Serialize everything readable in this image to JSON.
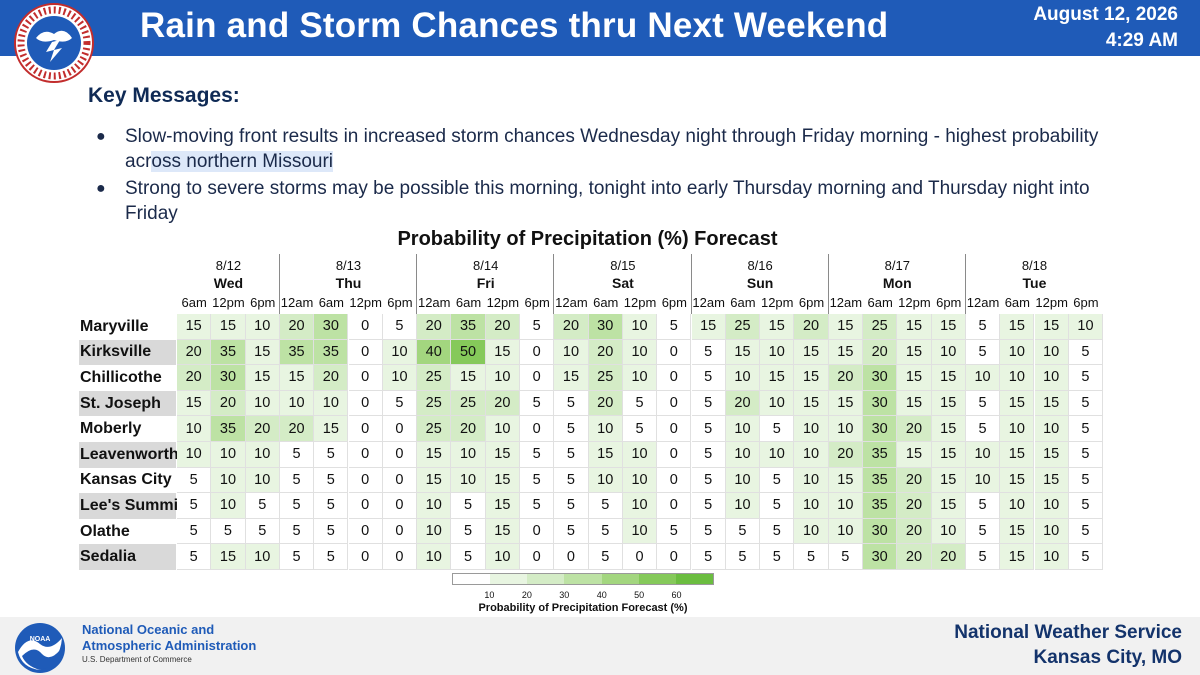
{
  "header": {
    "title": "Rain and Storm Chances thru Next Weekend",
    "date": "August 12, 2026",
    "time": "4:29 AM"
  },
  "key_messages": {
    "heading": "Key Messages:",
    "items": [
      {
        "before": "Slow-moving front results in increased storm chances Wednesday night through Friday morning - highest probability acr",
        "highlight": "oss northern Missouri"
      },
      {
        "before": "Strong to severe storms may be possible this morning, tonight into early Thursday morning and Thursday night into Friday",
        "highlight": ""
      }
    ]
  },
  "table": {
    "title": "Probability of Precipitation (%) Forecast",
    "days": [
      {
        "date": "8/12",
        "day": "Wed",
        "times": [
          "6am",
          "12pm",
          "6pm"
        ]
      },
      {
        "date": "8/13",
        "day": "Thu",
        "times": [
          "12am",
          "6am",
          "12pm",
          "6pm"
        ]
      },
      {
        "date": "8/14",
        "day": "Fri",
        "times": [
          "12am",
          "6am",
          "12pm",
          "6pm"
        ]
      },
      {
        "date": "8/15",
        "day": "Sat",
        "times": [
          "12am",
          "6am",
          "12pm",
          "6pm"
        ]
      },
      {
        "date": "8/16",
        "day": "Sun",
        "times": [
          "12am",
          "6am",
          "12pm",
          "6pm"
        ]
      },
      {
        "date": "8/17",
        "day": "Mon",
        "times": [
          "12am",
          "6am",
          "12pm",
          "6pm"
        ]
      },
      {
        "date": "8/18",
        "day": "Tue",
        "times": [
          "12am",
          "6am",
          "12pm",
          "6pm"
        ]
      }
    ],
    "rows": [
      {
        "location": "Maryville",
        "values": [
          15,
          15,
          10,
          20,
          30,
          0,
          5,
          20,
          35,
          20,
          5,
          20,
          30,
          10,
          5,
          15,
          25,
          15,
          20,
          15,
          25,
          15,
          15,
          5,
          15,
          15,
          10
        ]
      },
      {
        "location": "Kirksville",
        "values": [
          20,
          35,
          15,
          35,
          35,
          0,
          10,
          40,
          50,
          15,
          0,
          10,
          20,
          10,
          0,
          5,
          15,
          10,
          15,
          15,
          20,
          15,
          10,
          5,
          10,
          10,
          5
        ]
      },
      {
        "location": "Chillicothe",
        "values": [
          20,
          30,
          15,
          15,
          20,
          0,
          10,
          25,
          15,
          10,
          0,
          15,
          25,
          10,
          0,
          5,
          10,
          15,
          15,
          20,
          30,
          15,
          15,
          10,
          10,
          10,
          5
        ]
      },
      {
        "location": "St. Joseph",
        "values": [
          15,
          20,
          10,
          10,
          10,
          0,
          5,
          25,
          25,
          20,
          5,
          5,
          20,
          5,
          0,
          5,
          20,
          10,
          15,
          15,
          30,
          15,
          15,
          5,
          15,
          15,
          5
        ]
      },
      {
        "location": "Moberly",
        "values": [
          10,
          35,
          20,
          20,
          15,
          0,
          0,
          25,
          20,
          10,
          0,
          5,
          10,
          5,
          0,
          5,
          10,
          5,
          10,
          10,
          30,
          20,
          15,
          5,
          10,
          10,
          5
        ]
      },
      {
        "location": "Leavenworth",
        "values": [
          10,
          10,
          10,
          5,
          5,
          0,
          0,
          15,
          10,
          15,
          5,
          5,
          15,
          10,
          0,
          5,
          10,
          10,
          10,
          20,
          35,
          15,
          15,
          10,
          15,
          15,
          5
        ]
      },
      {
        "location": "Kansas City",
        "values": [
          5,
          10,
          10,
          5,
          5,
          0,
          0,
          15,
          10,
          15,
          5,
          5,
          10,
          10,
          0,
          5,
          10,
          5,
          10,
          15,
          35,
          20,
          15,
          10,
          15,
          15,
          5
        ]
      },
      {
        "location": "Lee's Summit",
        "values": [
          5,
          10,
          5,
          5,
          5,
          0,
          0,
          10,
          5,
          15,
          5,
          5,
          5,
          10,
          0,
          5,
          10,
          5,
          10,
          10,
          35,
          20,
          15,
          5,
          10,
          10,
          5
        ]
      },
      {
        "location": "Olathe",
        "values": [
          5,
          5,
          5,
          5,
          5,
          0,
          0,
          10,
          5,
          15,
          0,
          5,
          5,
          10,
          5,
          5,
          5,
          5,
          10,
          10,
          30,
          20,
          10,
          5,
          15,
          10,
          5
        ]
      },
      {
        "location": "Sedalia",
        "values": [
          5,
          15,
          10,
          5,
          5,
          0,
          0,
          10,
          5,
          10,
          0,
          0,
          5,
          0,
          0,
          5,
          5,
          5,
          5,
          5,
          30,
          20,
          20,
          5,
          15,
          10,
          5
        ]
      }
    ],
    "shaded_rows": [
      "Kirksville",
      "St. Joseph",
      "Leavenworth",
      "Lee's Summit",
      "Sedalia"
    ]
  },
  "legend": {
    "ticks": [
      "10",
      "20",
      "30",
      "40",
      "50",
      "60"
    ],
    "label": "Probability of Precipitation Forecast (%)",
    "colors": [
      "#ffffff",
      "#e8f5e1",
      "#d4ecc6",
      "#bde2a4",
      "#a3d67f",
      "#85c95a",
      "#6bbd40"
    ]
  },
  "footer": {
    "noaa_line1": "National Oceanic and",
    "noaa_line2": "Atmospheric Administration",
    "noaa_dept": "U.S. Department of Commerce",
    "office_line1": "National Weather Service",
    "office_line2": "Kansas City, MO"
  },
  "logos": {
    "nws": "nws-logo-icon",
    "noaa": "noaa-logo-icon"
  }
}
